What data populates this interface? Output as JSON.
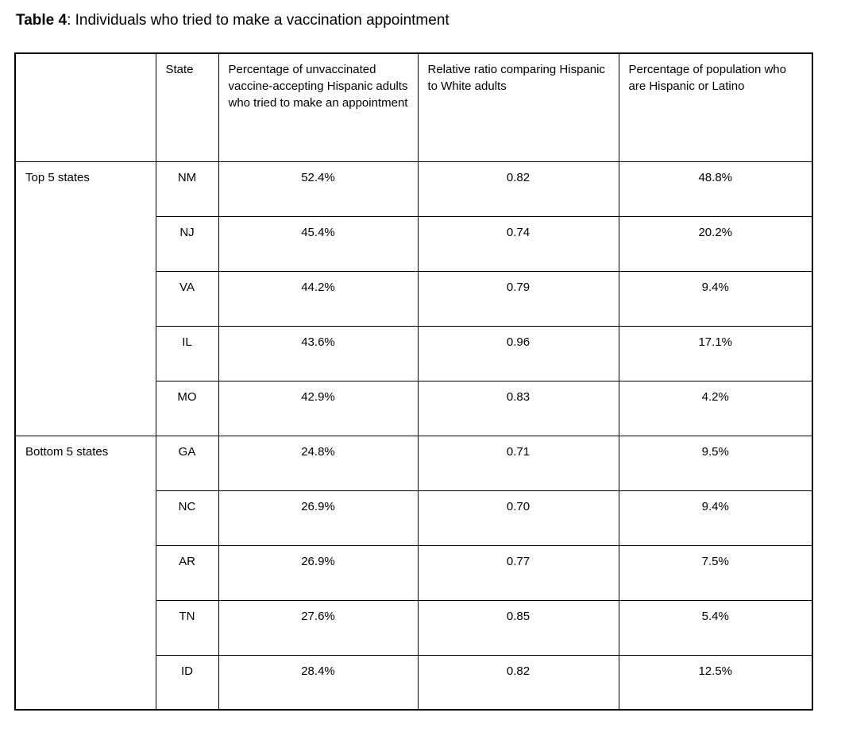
{
  "caption": {
    "number": "Table 4",
    "text": ": Individuals who tried to make a vaccination appointment"
  },
  "table": {
    "headers": {
      "group": "",
      "state": "State",
      "pct_tried": "Percentage of unvaccinated vaccine-accepting Hispanic adults who tried to make an appointment",
      "ratio": "Relative ratio comparing Hispanic to White adults",
      "pct_population": "Percentage of population who are Hispanic or Latino"
    },
    "groups": [
      {
        "label": "Top 5 states",
        "rows": [
          [
            "NM",
            "52.4%",
            "0.82",
            "48.8%"
          ],
          [
            "NJ",
            "45.4%",
            "0.74",
            "20.2%"
          ],
          [
            "VA",
            "44.2%",
            "0.79",
            "9.4%"
          ],
          [
            "IL",
            "43.6%",
            "0.96",
            "17.1%"
          ],
          [
            "MO",
            "42.9%",
            "0.83",
            "4.2%"
          ]
        ]
      },
      {
        "label": "Bottom 5 states",
        "rows": [
          [
            "GA",
            "24.8%",
            "0.71",
            "9.5%"
          ],
          [
            "NC",
            "26.9%",
            "0.70",
            "9.4%"
          ],
          [
            "AR",
            "26.9%",
            "0.77",
            "7.5%"
          ],
          [
            "TN",
            "27.6%",
            "0.85",
            "5.4%"
          ],
          [
            "ID",
            "28.4%",
            "0.82",
            "12.5%"
          ]
        ]
      }
    ]
  }
}
